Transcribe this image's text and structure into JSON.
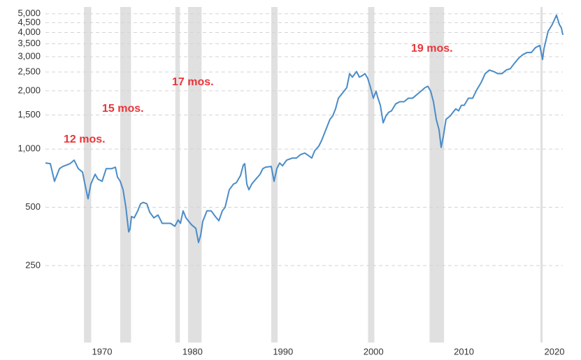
{
  "chart_data": {
    "type": "line",
    "log_scale_y": true,
    "grid": true,
    "xlim": [
      1963.74,
      2020.93
    ],
    "ylim": [
      100,
      5200
    ],
    "xticks": [
      1970,
      1980,
      1990,
      2000,
      2010,
      2020
    ],
    "yticks": [
      250,
      500,
      {
        "value": 1000,
        "label": "1,000"
      },
      {
        "value": 1500,
        "label": "1,500"
      },
      {
        "value": 2000,
        "label": "2,000"
      },
      {
        "value": 2500,
        "label": "2,500"
      },
      {
        "value": 3000,
        "label": "3,000"
      },
      {
        "value": 3500,
        "label": "3,500"
      },
      {
        "value": 4000,
        "label": "4,000"
      },
      {
        "value": 4500,
        "label": "4,500"
      },
      {
        "value": 5000,
        "label": "5,000"
      }
    ],
    "shaded_regions": [
      [
        1968.0,
        1968.8
      ],
      [
        1972.0,
        1973.2
      ],
      [
        1978.1,
        1978.6
      ],
      [
        1979.5,
        1981.0
      ],
      [
        1988.7,
        1989.4
      ],
      [
        1999.4,
        2000.1
      ],
      [
        2006.2,
        2007.8
      ],
      [
        2018.45,
        2018.7
      ]
    ],
    "shade_color": "#e0e0e0",
    "annotations": [
      "12 mos.",
      "15 mos.",
      "17 mos.",
      "19 mos."
    ],
    "annotation_color": "#e8363a",
    "x": [
      1963.74,
      1964.28,
      1964.74,
      1965.29,
      1965.67,
      1966.45,
      1966.91,
      1967.37,
      1967.84,
      1968.15,
      1968.45,
      1968.76,
      1969.23,
      1969.54,
      1970.0,
      1970.46,
      1971.08,
      1971.47,
      1971.7,
      1972.01,
      1972.32,
      1972.63,
      1972.94,
      1973.09,
      1973.25,
      1973.55,
      1973.94,
      1974.25,
      1974.56,
      1974.95,
      1975.26,
      1975.72,
      1976.18,
      1976.65,
      1977.11,
      1977.57,
      1978.04,
      1978.42,
      1978.66,
      1978.96,
      1979.27,
      1979.58,
      1979.89,
      1980.36,
      1980.66,
      1980.9,
      1981.13,
      1981.59,
      1982.06,
      1982.52,
      1982.91,
      1983.29,
      1983.6,
      1984.06,
      1984.53,
      1984.84,
      1985.3,
      1985.61,
      1985.77,
      1986.0,
      1986.23,
      1986.54,
      1987.0,
      1987.47,
      1987.77,
      1988.08,
      1988.7,
      1989.01,
      1989.32,
      1989.63,
      1989.94,
      1990.4,
      1991.02,
      1991.48,
      1991.95,
      1992.41,
      1992.87,
      1993.18,
      1993.49,
      1993.96,
      1994.27,
      1994.73,
      1995.19,
      1995.5,
      1995.81,
      1996.12,
      1996.43,
      1996.74,
      1997.05,
      1997.36,
      1997.67,
      1998.13,
      1998.44,
      1998.75,
      1999.06,
      1999.37,
      1999.68,
      1999.98,
      2000.29,
      2000.45,
      2000.76,
      2001.07,
      2001.38,
      2001.68,
      2001.99,
      2002.46,
      2002.92,
      2003.38,
      2003.85,
      2004.31,
      2004.78,
      2005.24,
      2005.7,
      2006.01,
      2006.32,
      2006.63,
      2006.94,
      2007.25,
      2007.48,
      2007.71,
      2008.02,
      2008.49,
      2008.79,
      2009.1,
      2009.41,
      2009.72,
      2010.03,
      2010.49,
      2010.96,
      2011.42,
      2011.89,
      2012.35,
      2012.81,
      2013.28,
      2013.74,
      2014.2,
      2014.67,
      2015.13,
      2015.6,
      2016.06,
      2016.52,
      2016.99,
      2017.45,
      2017.91,
      2018.38,
      2018.69,
      2018.84,
      2019.3,
      2019.77,
      2020.23,
      2020.54,
      2020.77,
      2020.93
    ],
    "series": [
      {
        "color": "#4a8cc8",
        "values": [
          847,
          840,
          681,
          792,
          813,
          840,
          876,
          792,
          760,
          643,
          553,
          659,
          741,
          699,
          681,
          792,
          792,
          806,
          717,
          681,
          616,
          500,
          373,
          386,
          448,
          441,
          479,
          521,
          530,
          521,
          472,
          441,
          456,
          413,
          413,
          413,
          399,
          430,
          413,
          479,
          441,
          423,
          406,
          389,
          329,
          358,
          423,
          479,
          479,
          448,
          426,
          479,
          500,
          616,
          659,
          670,
          729,
          826,
          840,
          659,
          616,
          659,
          699,
          741,
          792,
          806,
          813,
          681,
          792,
          847,
          819,
          876,
          898,
          898,
          937,
          953,
          921,
          898,
          977,
          1036,
          1108,
          1256,
          1424,
          1484,
          1614,
          1830,
          1908,
          1990,
          2076,
          2453,
          2353,
          2516,
          2353,
          2393,
          2453,
          2315,
          2076,
          1830,
          1990,
          1862,
          1683,
          1366,
          1484,
          1548,
          1575,
          1712,
          1756,
          1756,
          1830,
          1830,
          1908,
          1990,
          2076,
          2111,
          1990,
          1756,
          1424,
          1256,
          1019,
          1155,
          1424,
          1484,
          1548,
          1614,
          1575,
          1683,
          1683,
          1830,
          1830,
          2024,
          2201,
          2453,
          2559,
          2516,
          2453,
          2453,
          2559,
          2603,
          2782,
          2950,
          3077,
          3155,
          3155,
          3344,
          3429,
          2902,
          3289,
          4055,
          4409,
          4917,
          4409,
          4230,
          3888
        ]
      }
    ]
  }
}
